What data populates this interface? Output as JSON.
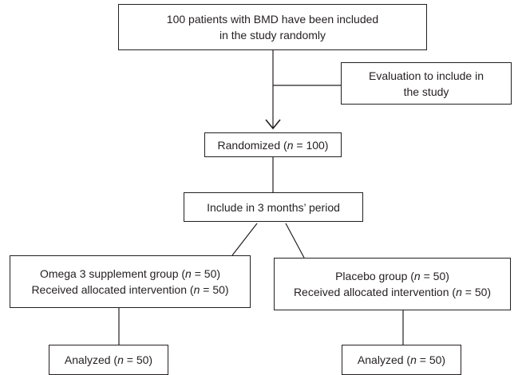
{
  "boxes": {
    "included": {
      "line1": "100 patients with BMD have been included",
      "line2": "in the study randomly"
    },
    "evaluation": {
      "line1": "Evaluation to include in",
      "line2": "the study"
    },
    "randomized": {
      "prefix": "Randomized (",
      "n": "n",
      "suffix": " = 100)"
    },
    "period": {
      "text": "Include in 3 months’ period"
    },
    "omega": {
      "line1": {
        "prefix": "Omega 3 supplement group (",
        "n": "n",
        "suffix": " = 50)"
      },
      "line2": {
        "prefix": "Received allocated intervention (",
        "n": "n",
        "suffix": " = 50)"
      }
    },
    "placebo": {
      "line1": {
        "prefix": "Placebo group (",
        "n": "n",
        "suffix": " = 50)"
      },
      "line2": {
        "prefix": "Received allocated intervention (",
        "n": "n",
        "suffix": " = 50)"
      }
    },
    "analyzed_left": {
      "prefix": "Analyzed (",
      "n": "n",
      "suffix": " = 50)"
    },
    "analyzed_right": {
      "prefix": "Analyzed (",
      "n": "n",
      "suffix": " = 50)"
    }
  },
  "colors": {
    "line": "#231f20",
    "background": "#ffffff"
  }
}
